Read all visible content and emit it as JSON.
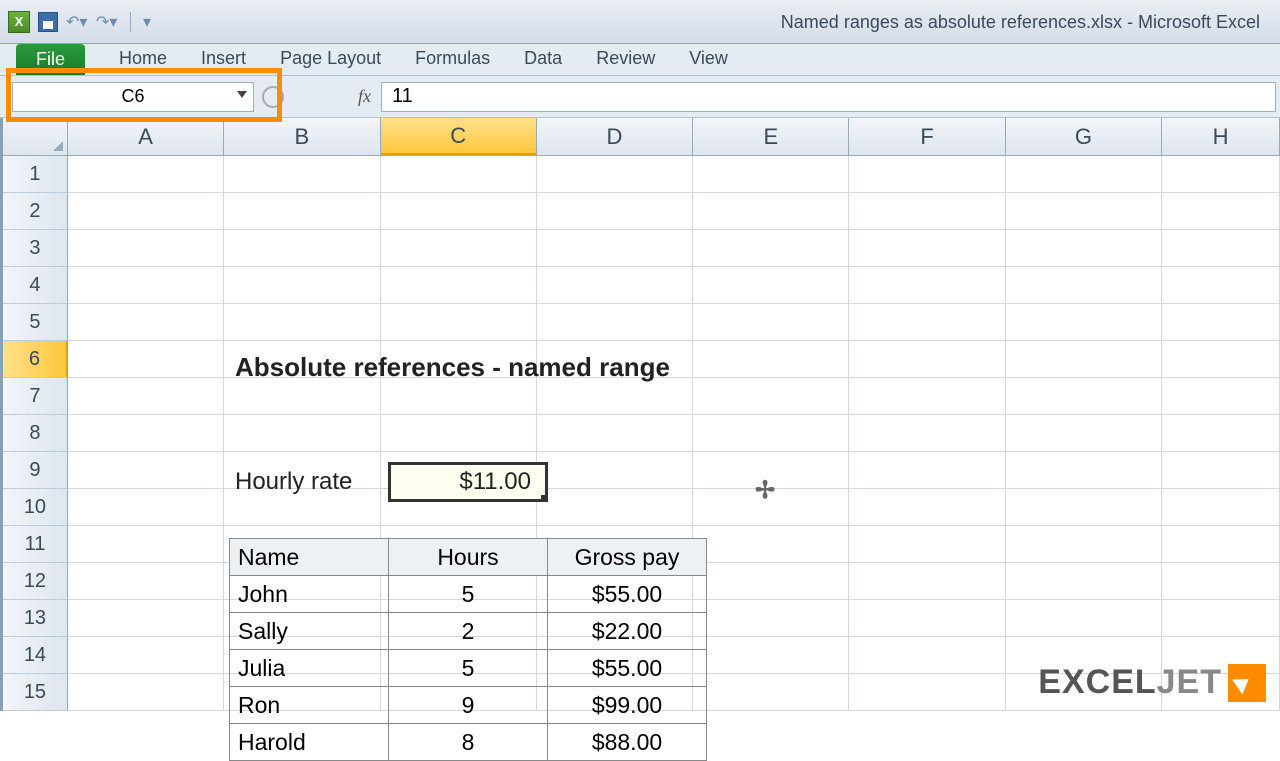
{
  "window": {
    "title": "Named ranges as absolute references.xlsx - Microsoft Excel"
  },
  "ribbon": {
    "file": "File",
    "tabs": [
      "Home",
      "Insert",
      "Page Layout",
      "Formulas",
      "Data",
      "Review",
      "View"
    ]
  },
  "namebox": {
    "value": "C6"
  },
  "formula_bar": {
    "fx": "fx",
    "value": "11"
  },
  "columns": [
    "A",
    "B",
    "C",
    "D",
    "E",
    "F",
    "G",
    "H"
  ],
  "selected_col_index": 2,
  "rows": [
    1,
    2,
    3,
    4,
    5,
    6,
    7,
    8,
    9,
    10,
    11,
    12,
    13,
    14,
    15
  ],
  "selected_row_index": 5,
  "sheet": {
    "title": "Absolute references - named range",
    "hourly_label": "Hourly rate",
    "hourly_value": "$11.00"
  },
  "table": {
    "headers": [
      "Name",
      "Hours",
      "Gross pay"
    ],
    "rows": [
      {
        "name": "John",
        "hours": "5",
        "pay": "$55.00"
      },
      {
        "name": "Sally",
        "hours": "2",
        "pay": "$22.00"
      },
      {
        "name": "Julia",
        "hours": "5",
        "pay": "$55.00"
      },
      {
        "name": "Ron",
        "hours": "9",
        "pay": "$99.00"
      },
      {
        "name": "Harold",
        "hours": "8",
        "pay": "$88.00"
      }
    ]
  },
  "branding": {
    "text1": "EXCEL",
    "text2": "JET"
  },
  "colors": {
    "highlight_border": "#ff8c00",
    "selected_header_bg": "#ffc83d",
    "cell_selected_bg": "#fffff0",
    "grid_line": "#d4d8dc"
  }
}
